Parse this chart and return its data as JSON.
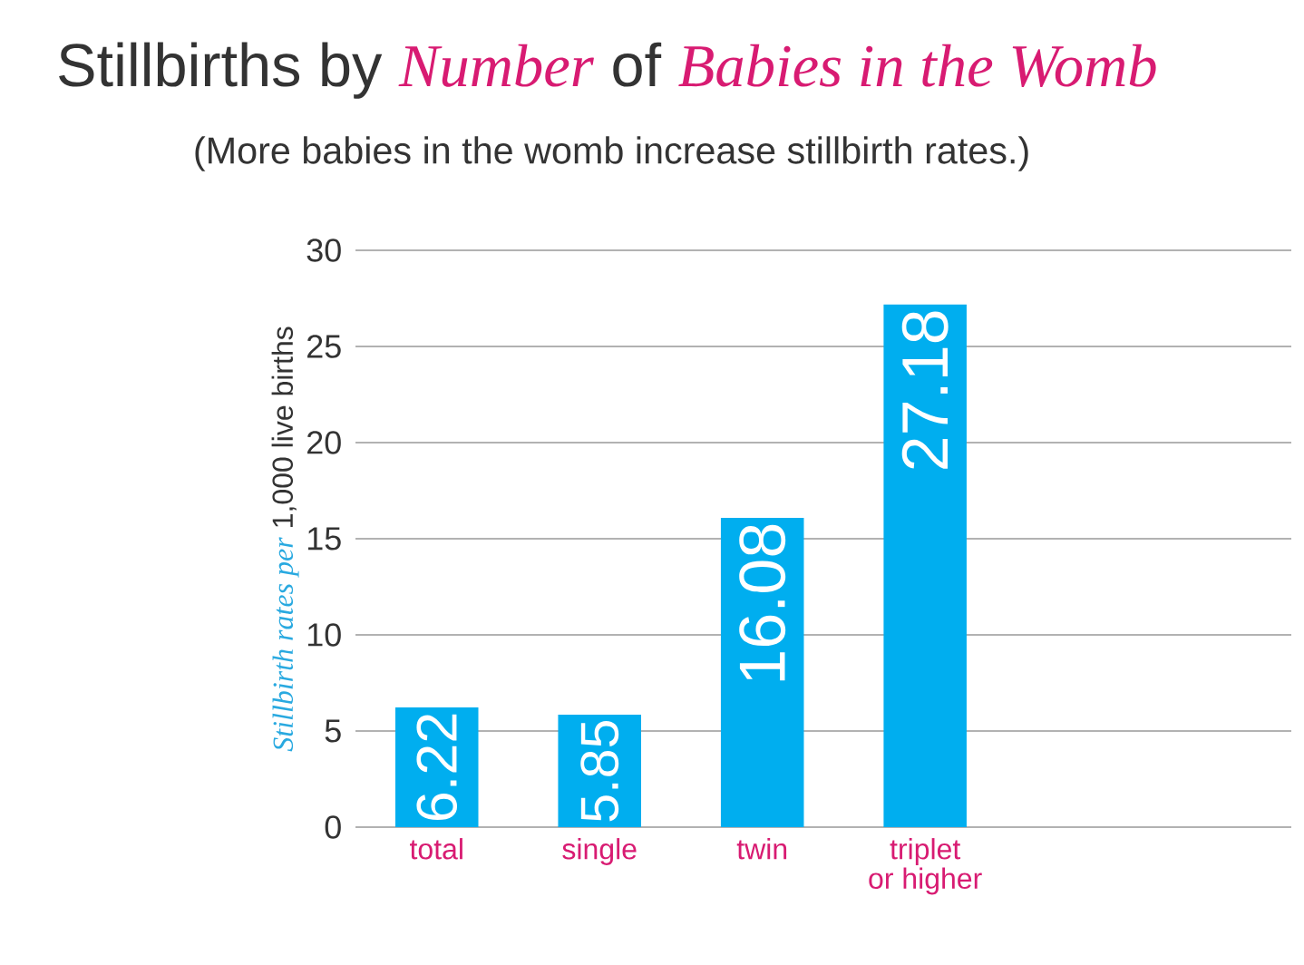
{
  "chart_data": {
    "type": "bar",
    "title": "Stillbirths by *Number* of *Babies in the Womb*",
    "subtitle": "(More babies in the womb increase stillbirth rates.)",
    "ylabel": "*Stillbirth rates per* 1,000 live births",
    "categories": [
      "total",
      "single",
      "twin",
      "triplet\nor higher"
    ],
    "values": [
      6.22,
      5.85,
      16.08,
      27.18
    ],
    "color": "#00aeef",
    "ylim": [
      0,
      30
    ],
    "yticks": [
      0,
      5,
      10,
      15,
      20,
      25,
      30
    ],
    "grid": "y",
    "data_labels": true
  }
}
